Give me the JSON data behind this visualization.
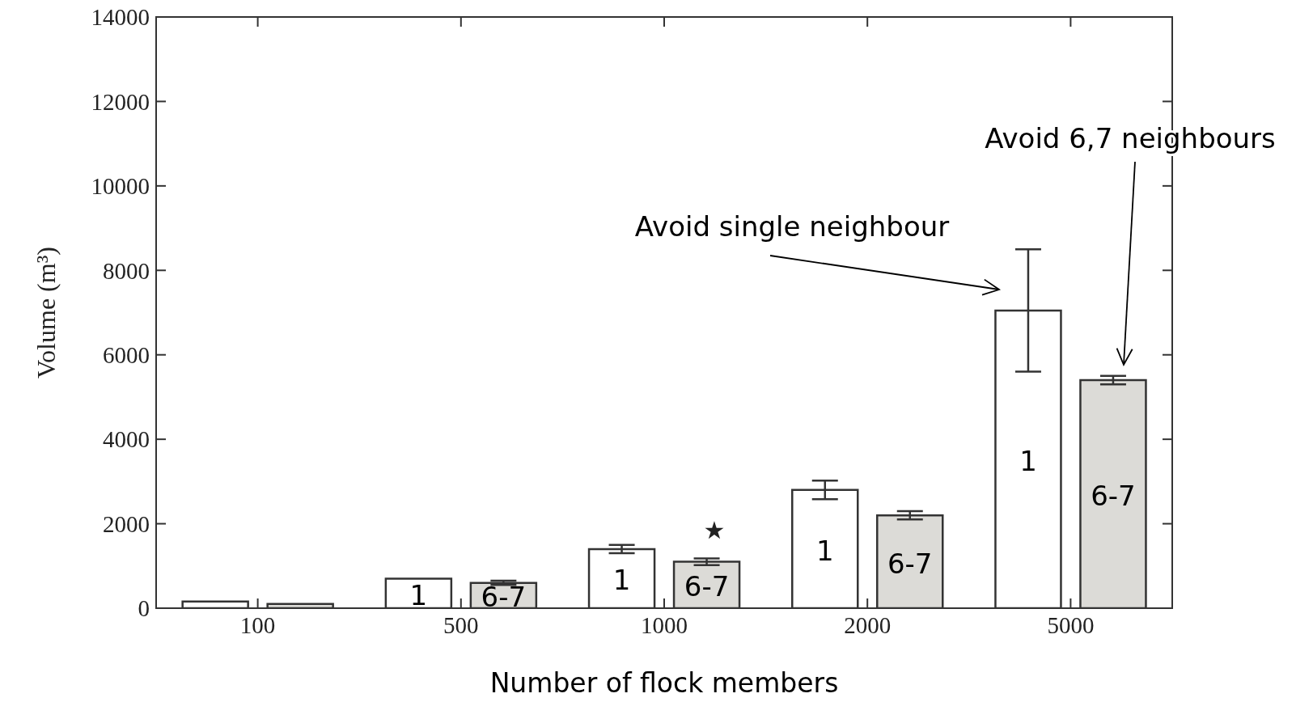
{
  "chart_data": {
    "type": "bar",
    "xlabel": "Number of flock members",
    "ylabel": "Volume (m³)",
    "categories": [
      "100",
      "500",
      "1000",
      "2000",
      "5000"
    ],
    "series": [
      {
        "name": "1",
        "color": "#ffffff",
        "values": [
          160,
          700,
          1400,
          2800,
          7050
        ],
        "errors": [
          null,
          null,
          100,
          220,
          1450
        ]
      },
      {
        "name": "6-7",
        "color": "#dcdbd7",
        "values": [
          100,
          600,
          1100,
          2200,
          5400
        ],
        "errors": [
          null,
          50,
          80,
          100,
          100
        ]
      }
    ],
    "ylim": [
      0,
      14000
    ],
    "yticks": [
      0,
      2000,
      4000,
      6000,
      8000,
      10000,
      12000,
      14000
    ],
    "grid": false,
    "legend": false,
    "annotations": [
      "★",
      "Avoid single neighbour",
      "Avoid 6,7 neighbours"
    ]
  }
}
